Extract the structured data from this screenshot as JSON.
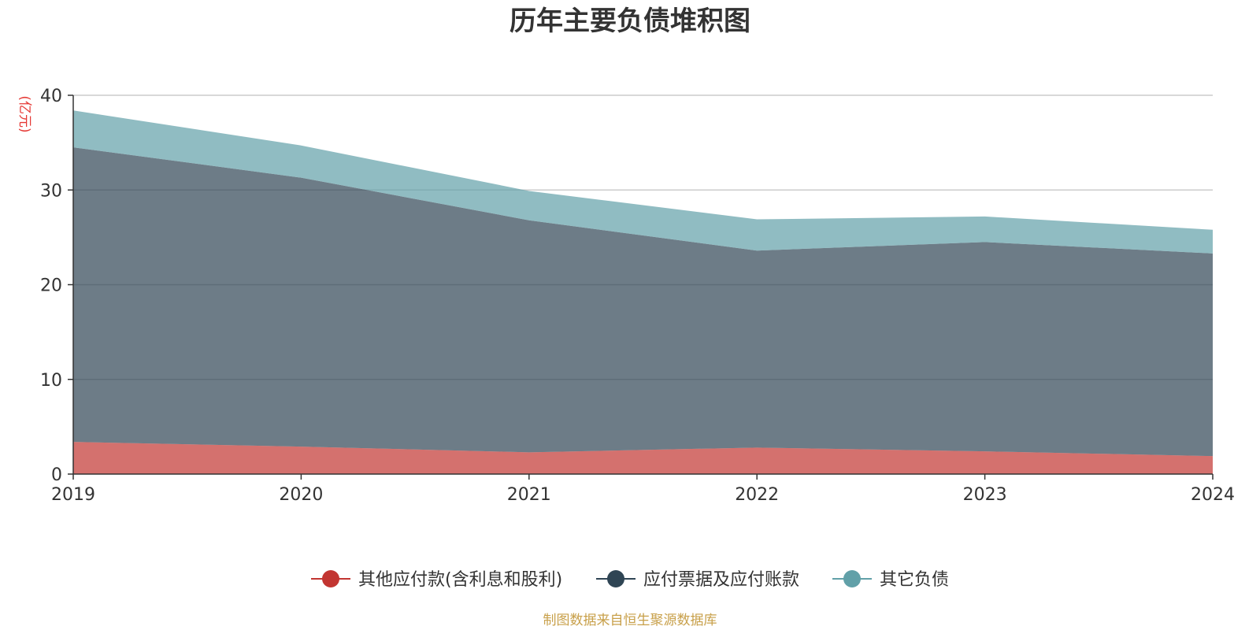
{
  "chart_data": {
    "type": "area",
    "stacked": true,
    "title": "历年主要负债堆积图",
    "unit_label": "(亿元)",
    "x": [
      "2019",
      "2020",
      "2021",
      "2022",
      "2023",
      "2024"
    ],
    "ylim": [
      0,
      40
    ],
    "yticks": [
      "0",
      "10",
      "20",
      "30",
      "40"
    ],
    "grid": true,
    "legend_position": "bottom",
    "series": [
      {
        "name": "其他应付款(含利息和股利)",
        "values": [
          3.4,
          2.9,
          2.3,
          2.8,
          2.4,
          1.9
        ],
        "color": "#c23531"
      },
      {
        "name": "应付票据及应付账款",
        "values": [
          31.1,
          28.4,
          24.5,
          20.8,
          22.1,
          21.4
        ],
        "color": "#2f4554"
      },
      {
        "name": "其它负债",
        "values": [
          3.9,
          3.4,
          3.1,
          3.3,
          2.7,
          2.5
        ],
        "color": "#61a0a8"
      }
    ],
    "source_note": "制图数据来自恒生聚源数据库"
  }
}
